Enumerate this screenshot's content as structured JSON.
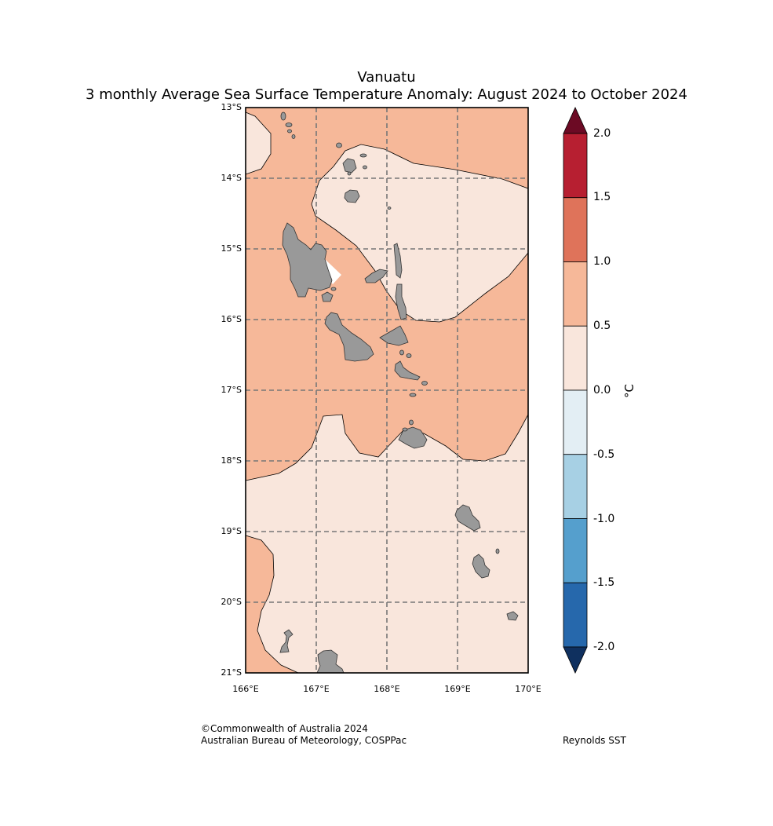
{
  "header": {
    "title": "Vanuatu",
    "subtitle": "3 monthly Average Sea Surface Temperature Anomaly: August 2024 to October 2024"
  },
  "map": {
    "lat_labels": [
      "13°S",
      "14°S",
      "15°S",
      "16°S",
      "17°S",
      "18°S",
      "19°S",
      "20°S",
      "21°S"
    ],
    "lon_labels": [
      "166°E",
      "167°E",
      "168°E",
      "169°E",
      "170°E"
    ],
    "lat_range": [
      -21,
      -13
    ],
    "lon_range": [
      166,
      170
    ],
    "land_color": "#999999",
    "anomaly_band_colors": {
      "0.0_to_0.5": "#f9e6dc",
      "0.5_to_1.0": "#f6b899"
    }
  },
  "colorbar": {
    "unit": "°C",
    "ticks": [
      "2.0",
      "1.5",
      "1.0",
      "0.5",
      "0.0",
      "-0.5",
      "-1.0",
      "-1.5",
      "-2.0"
    ],
    "bands": [
      {
        "from": 1.5,
        "to": 2.0,
        "color": "#b71f31"
      },
      {
        "from": 1.0,
        "to": 1.5,
        "color": "#df735a"
      },
      {
        "from": 0.5,
        "to": 1.0,
        "color": "#f6b899"
      },
      {
        "from": 0.0,
        "to": 0.5,
        "color": "#f9e6dc"
      },
      {
        "from": -0.5,
        "to": 0.0,
        "color": "#e3eef4"
      },
      {
        "from": -1.0,
        "to": -0.5,
        "color": "#a7d0e4"
      },
      {
        "from": -1.5,
        "to": -1.0,
        "color": "#559fcd"
      },
      {
        "from": -2.0,
        "to": -1.5,
        "color": "#2668ac"
      }
    ],
    "over_color": "#6c0a24",
    "under_color": "#0f305f"
  },
  "footer": {
    "copyright": "©Commonwealth of Australia 2024",
    "agency": "Australian Bureau of Meteorology, COSPPac",
    "source": "Reynolds SST"
  }
}
